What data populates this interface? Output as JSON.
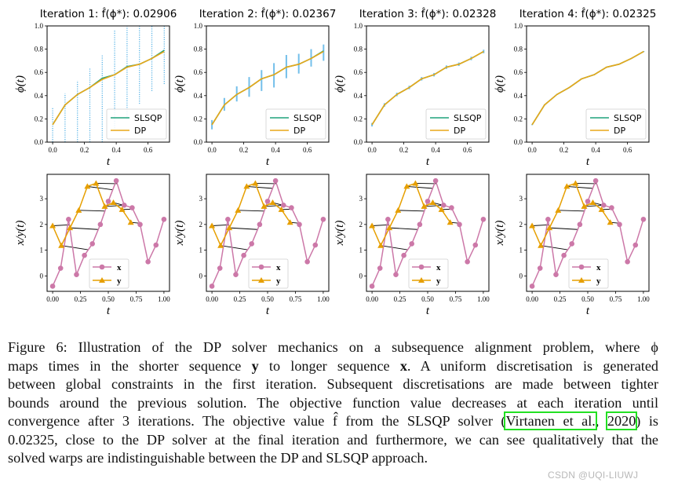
{
  "colors": {
    "slsqp": "#1fa27c",
    "dp": "#e8a718",
    "bounds": "#5ab4e6",
    "x_series": "#cc78a8",
    "y_series": "#e69f00",
    "alignment": "#000000",
    "citation_box": "#22e022"
  },
  "chart_data": [
    {
      "type": "line",
      "title": "Iteration 1: f̂(ϕ*): 0.02906",
      "xlabel": "t",
      "ylabel": "ϕ(t)",
      "xlim": [
        -0.035,
        0.735
      ],
      "ylim": [
        0,
        1
      ],
      "xticks": [
        "0.0",
        "0.2",
        "0.4",
        "0.6"
      ],
      "yticks": [
        "0.0",
        "0.2",
        "0.4",
        "0.6",
        "0.8",
        "1.0"
      ],
      "legend": "lower-right",
      "t": [
        0,
        0.078,
        0.156,
        0.234,
        0.312,
        0.39,
        0.468,
        0.546,
        0.624,
        0.702
      ],
      "series": [
        {
          "name": "SLSQP",
          "values": [
            0.15,
            0.32,
            0.41,
            0.47,
            0.55,
            0.58,
            0.65,
            0.67,
            0.72,
            0.79
          ]
        },
        {
          "name": "DP",
          "values": [
            0.15,
            0.32,
            0.41,
            0.47,
            0.54,
            0.58,
            0.645,
            0.67,
            0.72,
            0.78
          ]
        }
      ],
      "bounds": {
        "style": "dotted",
        "lower": [
          0,
          0,
          0,
          0,
          0,
          0.1,
          0.2,
          0.33,
          0.44,
          0.5
        ],
        "upper": [
          0.3,
          0.42,
          0.53,
          0.64,
          0.75,
          0.97,
          1.0,
          1.0,
          1.0,
          1.0
        ]
      }
    },
    {
      "type": "line",
      "title": "Iteration 2: f̂(ϕ*): 0.02367",
      "xlabel": "t",
      "ylabel": "ϕ(t)",
      "xlim": [
        -0.035,
        0.735
      ],
      "ylim": [
        0,
        1
      ],
      "xticks": [
        "0.0",
        "0.2",
        "0.4",
        "0.6"
      ],
      "yticks": [
        "0.0",
        "0.2",
        "0.4",
        "0.6",
        "0.8",
        "1.0"
      ],
      "legend": "lower-right",
      "t": [
        0,
        0.078,
        0.156,
        0.234,
        0.312,
        0.39,
        0.468,
        0.546,
        0.624,
        0.702
      ],
      "series": [
        {
          "name": "SLSQP",
          "values": [
            0.15,
            0.32,
            0.41,
            0.47,
            0.545,
            0.58,
            0.645,
            0.67,
            0.72,
            0.785
          ]
        },
        {
          "name": "DP",
          "values": [
            0.15,
            0.32,
            0.41,
            0.47,
            0.545,
            0.58,
            0.645,
            0.67,
            0.72,
            0.78
          ]
        }
      ],
      "bounds": {
        "style": "solid",
        "lower": [
          0.11,
          0.27,
          0.35,
          0.39,
          0.44,
          0.47,
          0.55,
          0.59,
          0.65,
          0.7
        ],
        "upper": [
          0.19,
          0.38,
          0.48,
          0.56,
          0.62,
          0.68,
          0.75,
          0.76,
          0.8,
          0.84
        ]
      }
    },
    {
      "type": "line",
      "title": "Iteration 3: f̂(ϕ*): 0.02328",
      "xlabel": "t",
      "ylabel": "ϕ(t)",
      "xlim": [
        -0.035,
        0.735
      ],
      "ylim": [
        0,
        1
      ],
      "xticks": [
        "0.0",
        "0.2",
        "0.4",
        "0.6"
      ],
      "yticks": [
        "0.0",
        "0.2",
        "0.4",
        "0.6",
        "0.8",
        "1.0"
      ],
      "legend": "lower-right",
      "t": [
        0,
        0.078,
        0.156,
        0.234,
        0.312,
        0.39,
        0.468,
        0.546,
        0.624,
        0.702
      ],
      "series": [
        {
          "name": "SLSQP",
          "values": [
            0.15,
            0.32,
            0.41,
            0.47,
            0.545,
            0.58,
            0.645,
            0.67,
            0.72,
            0.78
          ]
        },
        {
          "name": "DP",
          "values": [
            0.15,
            0.32,
            0.41,
            0.47,
            0.545,
            0.58,
            0.645,
            0.67,
            0.72,
            0.78
          ]
        }
      ],
      "bounds": {
        "style": "solid",
        "lower": [
          0.135,
          0.305,
          0.395,
          0.455,
          0.53,
          0.565,
          0.63,
          0.655,
          0.705,
          0.765
        ],
        "upper": [
          0.165,
          0.335,
          0.425,
          0.485,
          0.56,
          0.595,
          0.66,
          0.685,
          0.735,
          0.795
        ]
      }
    },
    {
      "type": "line",
      "title": "Iteration 4: f̂(ϕ*): 0.02325",
      "xlabel": "t",
      "ylabel": "ϕ(t)",
      "xlim": [
        -0.035,
        0.735
      ],
      "ylim": [
        0,
        1
      ],
      "xticks": [
        "0.0",
        "0.2",
        "0.4",
        "0.6"
      ],
      "yticks": [
        "0.0",
        "0.2",
        "0.4",
        "0.6",
        "0.8",
        "1.0"
      ],
      "legend": "lower-right",
      "t": [
        0,
        0.078,
        0.156,
        0.234,
        0.312,
        0.39,
        0.468,
        0.546,
        0.624,
        0.702
      ],
      "series": [
        {
          "name": "SLSQP",
          "values": [
            0.15,
            0.32,
            0.41,
            0.47,
            0.545,
            0.58,
            0.645,
            0.67,
            0.72,
            0.78
          ]
        },
        {
          "name": "DP",
          "values": [
            0.15,
            0.32,
            0.41,
            0.47,
            0.545,
            0.58,
            0.645,
            0.67,
            0.72,
            0.78
          ]
        }
      ],
      "bounds": {
        "style": "solid",
        "lower": [
          0.146,
          0.316,
          0.406,
          0.466,
          0.541,
          0.576,
          0.641,
          0.666,
          0.716,
          0.776
        ],
        "upper": [
          0.154,
          0.324,
          0.414,
          0.474,
          0.549,
          0.584,
          0.649,
          0.674,
          0.724,
          0.784
        ]
      }
    },
    {
      "type": "line",
      "note_panels": "same alignment plot shown below each iteration",
      "xlabel": "t",
      "ylabel": "x/y(t)",
      "xlim": [
        -0.05,
        1.05
      ],
      "ylim": [
        -0.6,
        3.95
      ],
      "xticks": [
        "0.00",
        "0.25",
        "0.50",
        "0.75",
        "1.00"
      ],
      "yticks": [
        "0",
        "1",
        "2",
        "3"
      ],
      "legend": "lower-center",
      "series": [
        {
          "name": "x",
          "marker": "circle",
          "t": [
            0,
            0.0714,
            0.1429,
            0.2143,
            0.2857,
            0.3571,
            0.4286,
            0.5,
            0.5714,
            0.6429,
            0.7143,
            0.7857,
            0.8571,
            0.9286,
            1.0
          ],
          "values": [
            -0.4,
            0.3,
            2.2,
            0.05,
            0.8,
            1.25,
            2.0,
            2.9,
            3.7,
            2.75,
            2.65,
            2.0,
            0.55,
            1.2,
            2.2
          ]
        },
        {
          "name": "y",
          "marker": "triangle",
          "t": [
            0,
            0.078,
            0.156,
            0.234,
            0.312,
            0.39,
            0.468,
            0.546,
            0.624,
            0.702
          ],
          "values": [
            1.95,
            1.18,
            1.87,
            2.55,
            3.48,
            3.6,
            2.7,
            2.85,
            2.58,
            2.08
          ]
        }
      ]
    }
  ],
  "caption": {
    "lines": [
      "Figure 6: Illustration of the DP solver mechanics on a subsequence alignment problem, where ϕ",
      "maps times in the shorter sequence",
      "y",
      "to longer sequence",
      "x",
      ". A uniform discretisation is generated",
      "between global constraints in the first iteration. Subsequent discretisations are made between tighter",
      "bounds around the previous solution. The objective function value decreases at each iteration until",
      "convergence after 3 iterations. The objective value f̂ from the SLSQP solver (",
      "Virtanen et al.",
      ", ",
      "2020",
      ") is",
      "0.02325, close to the DP solver at the final iteration and furthermore, we can see qualitatively that the",
      "solved warps are indistinguishable between the DP and SLSQP approach."
    ]
  },
  "watermark": "CSDN @UQI-LIUWJ"
}
